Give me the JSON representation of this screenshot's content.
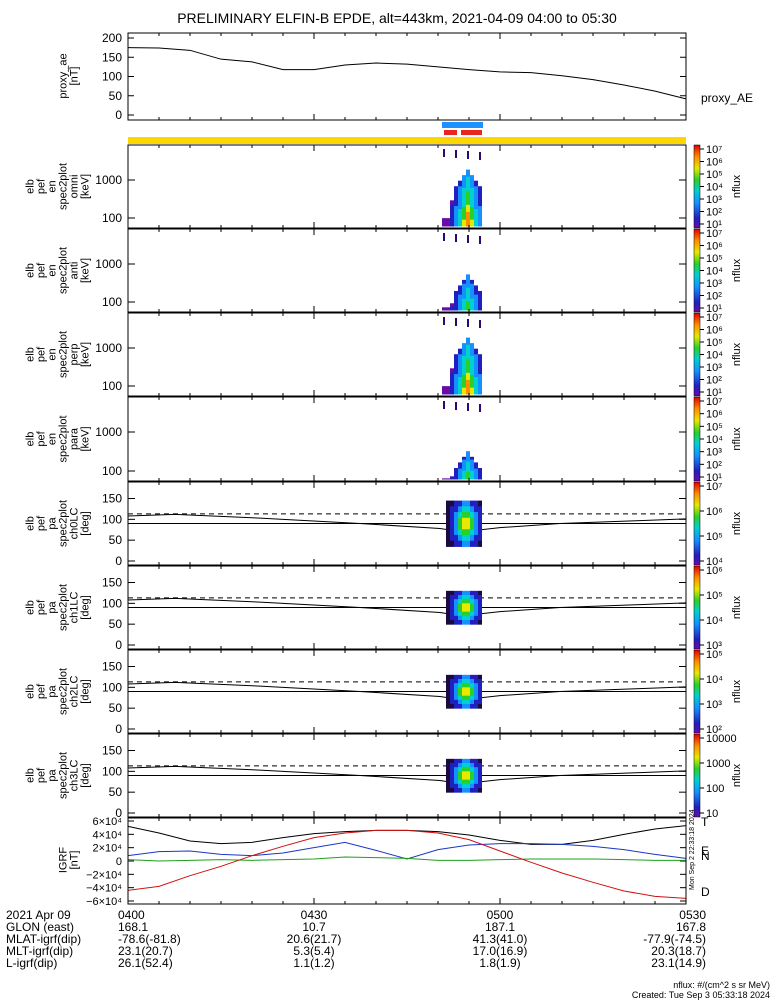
{
  "title": "PRELIMINARY ELFIN-B EPDE, alt=443km, 2021-04-09 04:00 to 05:30",
  "time_axis": {
    "labels": [
      "0400",
      "0430",
      "0500",
      "0530"
    ],
    "range": [
      "04:00",
      "05:30"
    ]
  },
  "footer": {
    "rows": [
      {
        "label": "2021 Apr 09",
        "values": [
          "0400",
          "0430",
          "0500",
          "0530"
        ]
      },
      {
        "label": "GLON (east)",
        "values": [
          "168.1",
          "10.7",
          "187.1",
          "167.8"
        ]
      },
      {
        "label": "MLAT-igrf(dip)",
        "values": [
          "-78.6(-81.8)",
          "20.6(21.7)",
          "41.3(41.0)",
          "-77.9(-74.5)"
        ]
      },
      {
        "label": "MLT-igrf(dip)",
        "values": [
          "23.1(20.7)",
          "5.3(5.4)",
          "17.0(16.9)",
          "20.3(18.7)"
        ]
      },
      {
        "label": "L-igrf(dip)",
        "values": [
          "26.1(52.4)",
          "1.1(1.2)",
          "1.8(1.9)",
          "23.1(14.9)"
        ]
      }
    ],
    "units_note": "nflux: #/(cm^2 s sr MeV)",
    "created": "Created: Tue Sep  3 05:33:18 2024",
    "side_stamp": "Mon Sep  2 22:33:18 2024"
  },
  "colors": {
    "gold_bar": "#FFD700",
    "blue_bar": "#1E90FF",
    "red_bar": "#E8251F",
    "grf_north": "#1A36C8",
    "grf_east": "#1BA11B",
    "grf_down": "#D01010"
  },
  "chart_data": [
    {
      "id": "ae",
      "type": "line",
      "ylabel": [
        "proxy_ae",
        "[nT]"
      ],
      "yticks": [
        "200",
        "150",
        "100",
        "50",
        "0"
      ],
      "ylim": [
        0,
        200
      ],
      "legend": "proxy_AE",
      "x": [
        "04:00",
        "04:05",
        "04:10",
        "04:15",
        "04:20",
        "04:25",
        "04:30",
        "04:35",
        "04:40",
        "04:45",
        "04:50",
        "04:55",
        "05:00",
        "05:05",
        "05:10",
        "05:15",
        "05:20",
        "05:25",
        "05:30"
      ],
      "values": [
        175,
        174,
        168,
        145,
        138,
        118,
        118,
        130,
        135,
        132,
        125,
        118,
        112,
        110,
        102,
        92,
        78,
        62,
        42
      ]
    },
    {
      "id": "omni",
      "type": "heatmap",
      "ylabel": [
        "elb",
        "pef",
        "en",
        "spec2plot",
        "omni",
        "[keV]"
      ],
      "yticks": [
        "1000",
        "100"
      ],
      "cb_label": "nflux",
      "cb_ticks": [
        "10¹",
        "10²",
        "10³",
        "10⁴",
        "10⁵",
        "10⁶",
        "10⁷"
      ]
    },
    {
      "id": "anti",
      "type": "heatmap",
      "ylabel": [
        "elb",
        "pef",
        "en",
        "spec2plot",
        "anti",
        "[keV]"
      ],
      "yticks": [
        "1000",
        "100"
      ],
      "cb_label": "nflux",
      "cb_ticks": [
        "10¹",
        "10²",
        "10³",
        "10⁴",
        "10⁵",
        "10⁶",
        "10⁷"
      ]
    },
    {
      "id": "perp",
      "type": "heatmap",
      "ylabel": [
        "elb",
        "pef",
        "en",
        "spec2plot",
        "perp",
        "[keV]"
      ],
      "yticks": [
        "1000",
        "100"
      ],
      "cb_label": "nflux",
      "cb_ticks": [
        "10¹",
        "10²",
        "10³",
        "10⁴",
        "10⁵",
        "10⁶",
        "10⁷"
      ]
    },
    {
      "id": "para",
      "type": "heatmap",
      "ylabel": [
        "elb",
        "pef",
        "en",
        "spec2plot",
        "para",
        "[keV]"
      ],
      "yticks": [
        "1000",
        "100"
      ],
      "cb_label": "nflux",
      "cb_ticks": [
        "10¹",
        "10²",
        "10³",
        "10⁴",
        "10⁵",
        "10⁶",
        "10⁷"
      ]
    },
    {
      "id": "ch0",
      "type": "heatmap",
      "ylabel": [
        "elb",
        "pef",
        "pa",
        "spec2plot",
        "ch0LC",
        "[deg]"
      ],
      "yticks": [
        "150",
        "100",
        "50",
        "0"
      ],
      "cb_label": "nflux",
      "cb_ticks": [
        "10⁴",
        "10⁵",
        "10⁶",
        "10⁷"
      ]
    },
    {
      "id": "ch1",
      "type": "heatmap",
      "ylabel": [
        "elb",
        "pef",
        "pa",
        "spec2plot",
        "ch1LC",
        "[deg]"
      ],
      "yticks": [
        "150",
        "100",
        "50",
        "0"
      ],
      "cb_label": "nflux",
      "cb_ticks": [
        "10³",
        "10⁴",
        "10⁵",
        "10⁶"
      ]
    },
    {
      "id": "ch2",
      "type": "heatmap",
      "ylabel": [
        "elb",
        "pef",
        "pa",
        "spec2plot",
        "ch2LC",
        "[deg]"
      ],
      "yticks": [
        "150",
        "100",
        "50",
        "0"
      ],
      "cb_label": "nflux",
      "cb_ticks": [
        "10²",
        "10³",
        "10⁴",
        "10⁵"
      ]
    },
    {
      "id": "ch3",
      "type": "heatmap",
      "ylabel": [
        "elb",
        "pef",
        "pa",
        "spec2plot",
        "ch3LC",
        "[deg]"
      ],
      "yticks": [
        "150",
        "100",
        "50",
        "0"
      ],
      "cb_label": "nflux",
      "cb_ticks": [
        "10",
        "100",
        "1000",
        "10000"
      ]
    },
    {
      "id": "grf",
      "type": "line",
      "ylabel": [
        "IGRF",
        "[nT]"
      ],
      "yticks": [
        "6×10⁴",
        "4×10⁴",
        "2×10⁴",
        "0",
        "−2×10⁴",
        "−4×10⁴",
        "−6×10⁴"
      ],
      "ylim": [
        -60000,
        60000
      ],
      "x": [
        "04:00",
        "04:05",
        "04:10",
        "04:15",
        "04:20",
        "04:25",
        "04:30",
        "04:35",
        "04:40",
        "04:45",
        "04:50",
        "04:55",
        "05:00",
        "05:05",
        "05:10",
        "05:15",
        "05:20",
        "05:25",
        "05:30"
      ],
      "series": [
        {
          "name": "T",
          "values": [
            52000,
            42000,
            30000,
            26000,
            28000,
            35000,
            41000,
            44000,
            46000,
            46000,
            44000,
            39000,
            31000,
            25000,
            25000,
            31000,
            40000,
            48000,
            53000
          ]
        },
        {
          "name": "N",
          "values": [
            8000,
            14000,
            15000,
            10000,
            8000,
            12000,
            20000,
            28000,
            16000,
            3000,
            17000,
            24000,
            26000,
            26000,
            25000,
            22000,
            17000,
            10000,
            4000
          ]
        },
        {
          "name": "E",
          "values": [
            2000,
            0,
            1000,
            2000,
            1000,
            2000,
            3000,
            6000,
            5000,
            4000,
            1000,
            1000,
            2000,
            3000,
            3000,
            3000,
            2000,
            1000,
            1000
          ]
        },
        {
          "name": "D",
          "values": [
            -44000,
            -38000,
            -22000,
            -8000,
            8000,
            22000,
            35000,
            42000,
            46000,
            46000,
            42000,
            32000,
            15000,
            -2000,
            -18000,
            -32000,
            -45000,
            -53000,
            -56000
          ]
        }
      ]
    }
  ]
}
